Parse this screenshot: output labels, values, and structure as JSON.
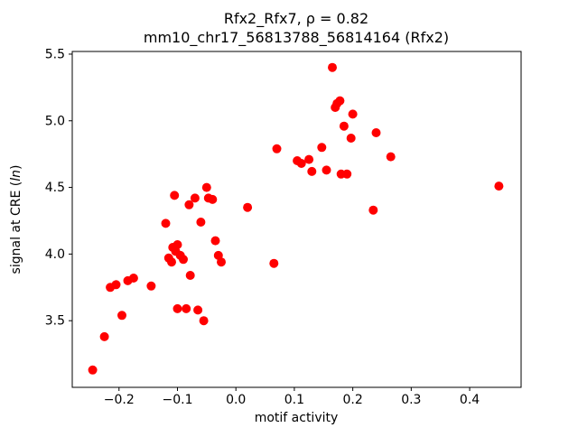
{
  "chart_data": {
    "type": "scatter",
    "title_line1": "Rfx2_Rfx7, ρ = 0.82",
    "title_line2": "mm10_chr17_56813788_56814164 (Rfx2)",
    "xlabel": "motif activity",
    "ylabel_parts": {
      "prefix": "signal at CRE (",
      "italic": "ln",
      "suffix": ")"
    },
    "marker_color": "#ff0000",
    "marker_radius": 5,
    "xlim": [
      -0.28,
      0.488
    ],
    "ylim": [
      3.0,
      5.52
    ],
    "xticks": [
      -0.2,
      -0.1,
      0.0,
      0.1,
      0.2,
      0.3,
      0.4
    ],
    "yticks": [
      3.5,
      4.0,
      4.5,
      5.0,
      5.5
    ],
    "grid": false,
    "legend": "none",
    "points": [
      [
        -0.245,
        3.13
      ],
      [
        -0.225,
        3.38
      ],
      [
        -0.215,
        3.75
      ],
      [
        -0.205,
        3.77
      ],
      [
        -0.195,
        3.54
      ],
      [
        -0.185,
        3.8
      ],
      [
        -0.175,
        3.82
      ],
      [
        -0.145,
        3.76
      ],
      [
        -0.12,
        4.23
      ],
      [
        -0.115,
        3.97
      ],
      [
        -0.11,
        3.94
      ],
      [
        -0.108,
        4.05
      ],
      [
        -0.105,
        4.44
      ],
      [
        -0.103,
        4.02
      ],
      [
        -0.1,
        4.07
      ],
      [
        -0.1,
        3.59
      ],
      [
        -0.095,
        3.99
      ],
      [
        -0.09,
        3.96
      ],
      [
        -0.085,
        3.59
      ],
      [
        -0.08,
        4.37
      ],
      [
        -0.078,
        3.84
      ],
      [
        -0.07,
        4.42
      ],
      [
        -0.065,
        3.58
      ],
      [
        -0.06,
        4.24
      ],
      [
        -0.055,
        3.5
      ],
      [
        -0.05,
        4.5
      ],
      [
        -0.047,
        4.42
      ],
      [
        -0.04,
        4.41
      ],
      [
        -0.035,
        4.1
      ],
      [
        -0.03,
        3.99
      ],
      [
        -0.025,
        3.94
      ],
      [
        0.02,
        4.35
      ],
      [
        0.065,
        3.93
      ],
      [
        0.07,
        4.79
      ],
      [
        0.105,
        4.7
      ],
      [
        0.112,
        4.68
      ],
      [
        0.125,
        4.71
      ],
      [
        0.13,
        4.62
      ],
      [
        0.147,
        4.8
      ],
      [
        0.155,
        4.63
      ],
      [
        0.165,
        5.4
      ],
      [
        0.17,
        5.1
      ],
      [
        0.173,
        5.13
      ],
      [
        0.178,
        5.15
      ],
      [
        0.18,
        4.6
      ],
      [
        0.185,
        4.96
      ],
      [
        0.19,
        4.6
      ],
      [
        0.197,
        4.87
      ],
      [
        0.2,
        5.05
      ],
      [
        0.235,
        4.33
      ],
      [
        0.24,
        4.91
      ],
      [
        0.265,
        4.73
      ],
      [
        0.45,
        4.51
      ]
    ]
  }
}
